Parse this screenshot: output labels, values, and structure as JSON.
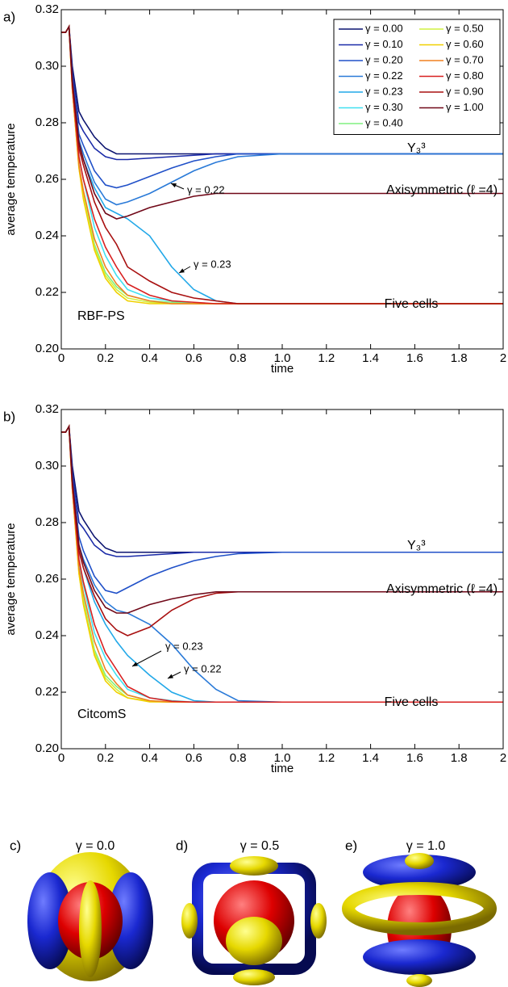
{
  "chart_data": [
    {
      "type": "line",
      "panel_label": "a)",
      "xlabel": "time",
      "ylabel": "average temperature",
      "x": [
        0,
        0.02,
        0.035,
        0.05,
        0.08,
        0.1,
        0.15,
        0.2,
        0.25,
        0.3,
        0.4,
        0.5,
        0.6,
        0.7,
        0.8,
        1.0,
        1.2,
        1.6,
        2.0
      ],
      "xlim": [
        0,
        2
      ],
      "ylim": [
        0.2,
        0.32
      ],
      "xticks": [
        0,
        0.2,
        0.4,
        0.6,
        0.8,
        {
          "value": 1,
          "label": "1.0"
        },
        1.2,
        1.4,
        1.6,
        1.8,
        2
      ],
      "yticks": [
        {
          "value": 0.2,
          "label": "0.20"
        },
        0.22,
        0.24,
        0.26,
        0.28,
        {
          "value": 0.3,
          "label": "0.30"
        },
        0.32
      ],
      "legend": "upper right",
      "grid": false,
      "annotations": [
        "Y₃³",
        "Axisymmetric (ℓ =4)",
        "γ = 0.22",
        "γ = 0.23",
        "Five cells",
        "RBF-PS"
      ],
      "series": [
        {
          "name": "γ = 0.00",
          "color": "#0c1470",
          "values": [
            0.312,
            0.312,
            0.314,
            0.3,
            0.284,
            0.281,
            0.275,
            0.271,
            0.269,
            0.269,
            0.269,
            0.269,
            0.269,
            0.269,
            0.269,
            0.269,
            0.269,
            0.269,
            0.269
          ]
        },
        {
          "name": "γ = 0.10",
          "color": "#1a2aa8",
          "values": [
            0.312,
            0.312,
            0.314,
            0.298,
            0.28,
            0.277,
            0.271,
            0.268,
            0.267,
            0.267,
            0.2675,
            0.268,
            0.2685,
            0.269,
            0.269,
            0.269,
            0.269,
            0.269,
            0.269
          ]
        },
        {
          "name": "γ = 0.20",
          "color": "#2050c8",
          "values": [
            0.312,
            0.312,
            0.314,
            0.296,
            0.276,
            0.272,
            0.263,
            0.258,
            0.257,
            0.258,
            0.261,
            0.264,
            0.2665,
            0.268,
            0.269,
            0.269,
            0.269,
            0.269,
            0.269
          ]
        },
        {
          "name": "γ = 0.22",
          "color": "#2a7ad8",
          "values": [
            0.312,
            0.312,
            0.314,
            0.295,
            0.274,
            0.269,
            0.259,
            0.253,
            0.251,
            0.252,
            0.255,
            0.259,
            0.263,
            0.266,
            0.268,
            0.269,
            0.269,
            0.269,
            0.269
          ]
        },
        {
          "name": "γ = 0.23",
          "color": "#22a8e8",
          "values": [
            0.312,
            0.312,
            0.314,
            0.294,
            0.272,
            0.267,
            0.257,
            0.25,
            0.248,
            0.246,
            0.24,
            0.229,
            0.221,
            0.217,
            0.216,
            0.216,
            0.216,
            0.216,
            0.216
          ]
        },
        {
          "name": "γ = 0.30",
          "color": "#40e0f0",
          "values": [
            0.312,
            0.312,
            0.314,
            0.293,
            0.268,
            0.26,
            0.243,
            0.233,
            0.226,
            0.221,
            0.218,
            0.217,
            0.216,
            0.216,
            0.216,
            0.216,
            0.216,
            0.216,
            0.216
          ]
        },
        {
          "name": "γ = 0.40",
          "color": "#80f080",
          "values": [
            0.312,
            0.312,
            0.314,
            0.292,
            0.265,
            0.255,
            0.237,
            0.227,
            0.222,
            0.219,
            0.217,
            0.2165,
            0.216,
            0.216,
            0.216,
            0.216,
            0.216,
            0.216,
            0.216
          ]
        },
        {
          "name": "γ = 0.50",
          "color": "#d0f040",
          "values": [
            0.312,
            0.312,
            0.314,
            0.292,
            0.264,
            0.254,
            0.236,
            0.226,
            0.221,
            0.218,
            0.2165,
            0.216,
            0.216,
            0.216,
            0.216,
            0.216,
            0.216,
            0.216,
            0.216
          ]
        },
        {
          "name": "γ = 0.60",
          "color": "#f0d000",
          "values": [
            0.312,
            0.312,
            0.314,
            0.292,
            0.264,
            0.253,
            0.235,
            0.225,
            0.22,
            0.217,
            0.216,
            0.216,
            0.216,
            0.216,
            0.216,
            0.216,
            0.216,
            0.216,
            0.216
          ]
        },
        {
          "name": "γ = 0.70",
          "color": "#f08020",
          "values": [
            0.312,
            0.312,
            0.314,
            0.292,
            0.265,
            0.256,
            0.239,
            0.229,
            0.223,
            0.219,
            0.217,
            0.216,
            0.216,
            0.216,
            0.216,
            0.216,
            0.216,
            0.216,
            0.216
          ]
        },
        {
          "name": "γ = 0.80",
          "color": "#d82020",
          "values": [
            0.312,
            0.312,
            0.314,
            0.293,
            0.268,
            0.26,
            0.246,
            0.236,
            0.229,
            0.223,
            0.219,
            0.217,
            0.2165,
            0.216,
            0.216,
            0.216,
            0.216,
            0.216,
            0.216
          ]
        },
        {
          "name": "γ = 0.90",
          "color": "#a81010",
          "values": [
            0.312,
            0.312,
            0.314,
            0.294,
            0.271,
            0.265,
            0.252,
            0.243,
            0.237,
            0.229,
            0.224,
            0.22,
            0.218,
            0.217,
            0.216,
            0.216,
            0.216,
            0.216,
            0.216
          ]
        },
        {
          "name": "γ = 1.00",
          "color": "#700818",
          "values": [
            0.312,
            0.312,
            0.314,
            0.295,
            0.273,
            0.267,
            0.255,
            0.248,
            0.246,
            0.247,
            0.25,
            0.252,
            0.254,
            0.255,
            0.255,
            0.255,
            0.255,
            0.255,
            0.255
          ]
        }
      ]
    },
    {
      "type": "line",
      "panel_label": "b)",
      "xlabel": "time",
      "ylabel": "average temperature",
      "x": [
        0,
        0.02,
        0.035,
        0.05,
        0.08,
        0.1,
        0.15,
        0.2,
        0.25,
        0.3,
        0.4,
        0.5,
        0.6,
        0.7,
        0.8,
        1.0,
        1.2,
        1.6,
        2.0
      ],
      "xlim": [
        0,
        2
      ],
      "ylim": [
        0.2,
        0.32
      ],
      "xticks": [
        0,
        0.2,
        0.4,
        0.6,
        0.8,
        {
          "value": 1,
          "label": "1.0"
        },
        1.2,
        1.4,
        1.6,
        1.8,
        2
      ],
      "yticks": [
        {
          "value": 0.2,
          "label": "0.20"
        },
        0.22,
        0.24,
        0.26,
        0.28,
        {
          "value": 0.3,
          "label": "0.30"
        },
        0.32
      ],
      "grid": false,
      "annotations": [
        "Y₃³",
        "Axisymmetric (ℓ =4)",
        "γ = 0.23",
        "γ = 0.22",
        "Five cells",
        "CitcomS"
      ],
      "series": [
        {
          "name": "γ = 0.00",
          "color": "#0c1470",
          "values": [
            0.312,
            0.312,
            0.314,
            0.3,
            0.284,
            0.281,
            0.275,
            0.271,
            0.2695,
            0.2695,
            0.2695,
            0.2695,
            0.2695,
            0.2695,
            0.2695,
            0.2695,
            0.2695,
            0.2695,
            0.2695
          ]
        },
        {
          "name": "γ = 0.10",
          "color": "#1a2aa8",
          "values": [
            0.312,
            0.312,
            0.314,
            0.298,
            0.28,
            0.278,
            0.272,
            0.269,
            0.268,
            0.268,
            0.2685,
            0.269,
            0.2695,
            0.2695,
            0.2695,
            0.2695,
            0.2695,
            0.2695,
            0.2695
          ]
        },
        {
          "name": "γ = 0.20",
          "color": "#2050c8",
          "values": [
            0.312,
            0.312,
            0.314,
            0.296,
            0.275,
            0.27,
            0.261,
            0.256,
            0.255,
            0.257,
            0.261,
            0.264,
            0.2665,
            0.268,
            0.269,
            0.2695,
            0.2695,
            0.2695,
            0.2695
          ]
        },
        {
          "name": "γ = 0.22",
          "color": "#2a7ad8",
          "values": [
            0.312,
            0.312,
            0.314,
            0.295,
            0.272,
            0.267,
            0.258,
            0.252,
            0.249,
            0.248,
            0.244,
            0.237,
            0.228,
            0.221,
            0.217,
            0.2165,
            0.2165,
            0.2165,
            0.2165
          ]
        },
        {
          "name": "γ = 0.23",
          "color": "#22a8e8",
          "values": [
            0.312,
            0.312,
            0.314,
            0.294,
            0.27,
            0.264,
            0.252,
            0.244,
            0.238,
            0.233,
            0.226,
            0.22,
            0.217,
            0.2165,
            0.2165,
            0.2165,
            0.2165,
            0.2165,
            0.2165
          ]
        },
        {
          "name": "γ = 0.30",
          "color": "#40e0f0",
          "values": [
            0.312,
            0.312,
            0.314,
            0.293,
            0.266,
            0.258,
            0.241,
            0.232,
            0.226,
            0.221,
            0.218,
            0.217,
            0.2165,
            0.2165,
            0.2165,
            0.2165,
            0.2165,
            0.2165,
            0.2165
          ]
        },
        {
          "name": "γ = 0.40",
          "color": "#80f080",
          "values": [
            0.312,
            0.312,
            0.314,
            0.292,
            0.263,
            0.253,
            0.235,
            0.226,
            0.222,
            0.219,
            0.217,
            0.2165,
            0.2165,
            0.2165,
            0.2165,
            0.2165,
            0.2165,
            0.2165,
            0.2165
          ]
        },
        {
          "name": "γ = 0.50",
          "color": "#d0f040",
          "values": [
            0.312,
            0.312,
            0.314,
            0.292,
            0.262,
            0.252,
            0.234,
            0.225,
            0.221,
            0.218,
            0.2168,
            0.2165,
            0.2165,
            0.2165,
            0.2165,
            0.2165,
            0.2165,
            0.2165,
            0.2165
          ]
        },
        {
          "name": "γ = 0.60",
          "color": "#f0d000",
          "values": [
            0.312,
            0.312,
            0.314,
            0.292,
            0.262,
            0.251,
            0.233,
            0.224,
            0.22,
            0.218,
            0.2166,
            0.2165,
            0.2165,
            0.2165,
            0.2165,
            0.2165,
            0.2165,
            0.2165,
            0.2165
          ]
        },
        {
          "name": "γ = 0.70",
          "color": "#f08020",
          "values": [
            0.312,
            0.312,
            0.314,
            0.292,
            0.264,
            0.255,
            0.238,
            0.228,
            0.223,
            0.219,
            0.217,
            0.2165,
            0.2165,
            0.2165,
            0.2165,
            0.2165,
            0.2165,
            0.2165,
            0.2165
          ]
        },
        {
          "name": "γ = 0.80",
          "color": "#d82020",
          "values": [
            0.312,
            0.312,
            0.314,
            0.293,
            0.267,
            0.259,
            0.244,
            0.234,
            0.228,
            0.222,
            0.218,
            0.2168,
            0.2165,
            0.2165,
            0.2165,
            0.2165,
            0.2165,
            0.2165,
            0.2165
          ]
        },
        {
          "name": "γ = 0.90",
          "color": "#a81010",
          "values": [
            0.312,
            0.312,
            0.314,
            0.294,
            0.27,
            0.264,
            0.254,
            0.246,
            0.242,
            0.24,
            0.243,
            0.249,
            0.253,
            0.255,
            0.2555,
            0.2555,
            0.2555,
            0.2555,
            0.2555
          ]
        },
        {
          "name": "γ = 1.00",
          "color": "#700818",
          "values": [
            0.312,
            0.312,
            0.314,
            0.295,
            0.272,
            0.266,
            0.256,
            0.25,
            0.248,
            0.248,
            0.251,
            0.253,
            0.2545,
            0.2555,
            0.2555,
            0.2555,
            0.2555,
            0.2555,
            0.2555
          ]
        }
      ]
    }
  ],
  "panels": [
    {
      "label": "c)",
      "title": "γ = 0.0"
    },
    {
      "label": "d)",
      "title": "γ = 0.5"
    },
    {
      "label": "e)",
      "title": "γ = 1.0"
    }
  ]
}
